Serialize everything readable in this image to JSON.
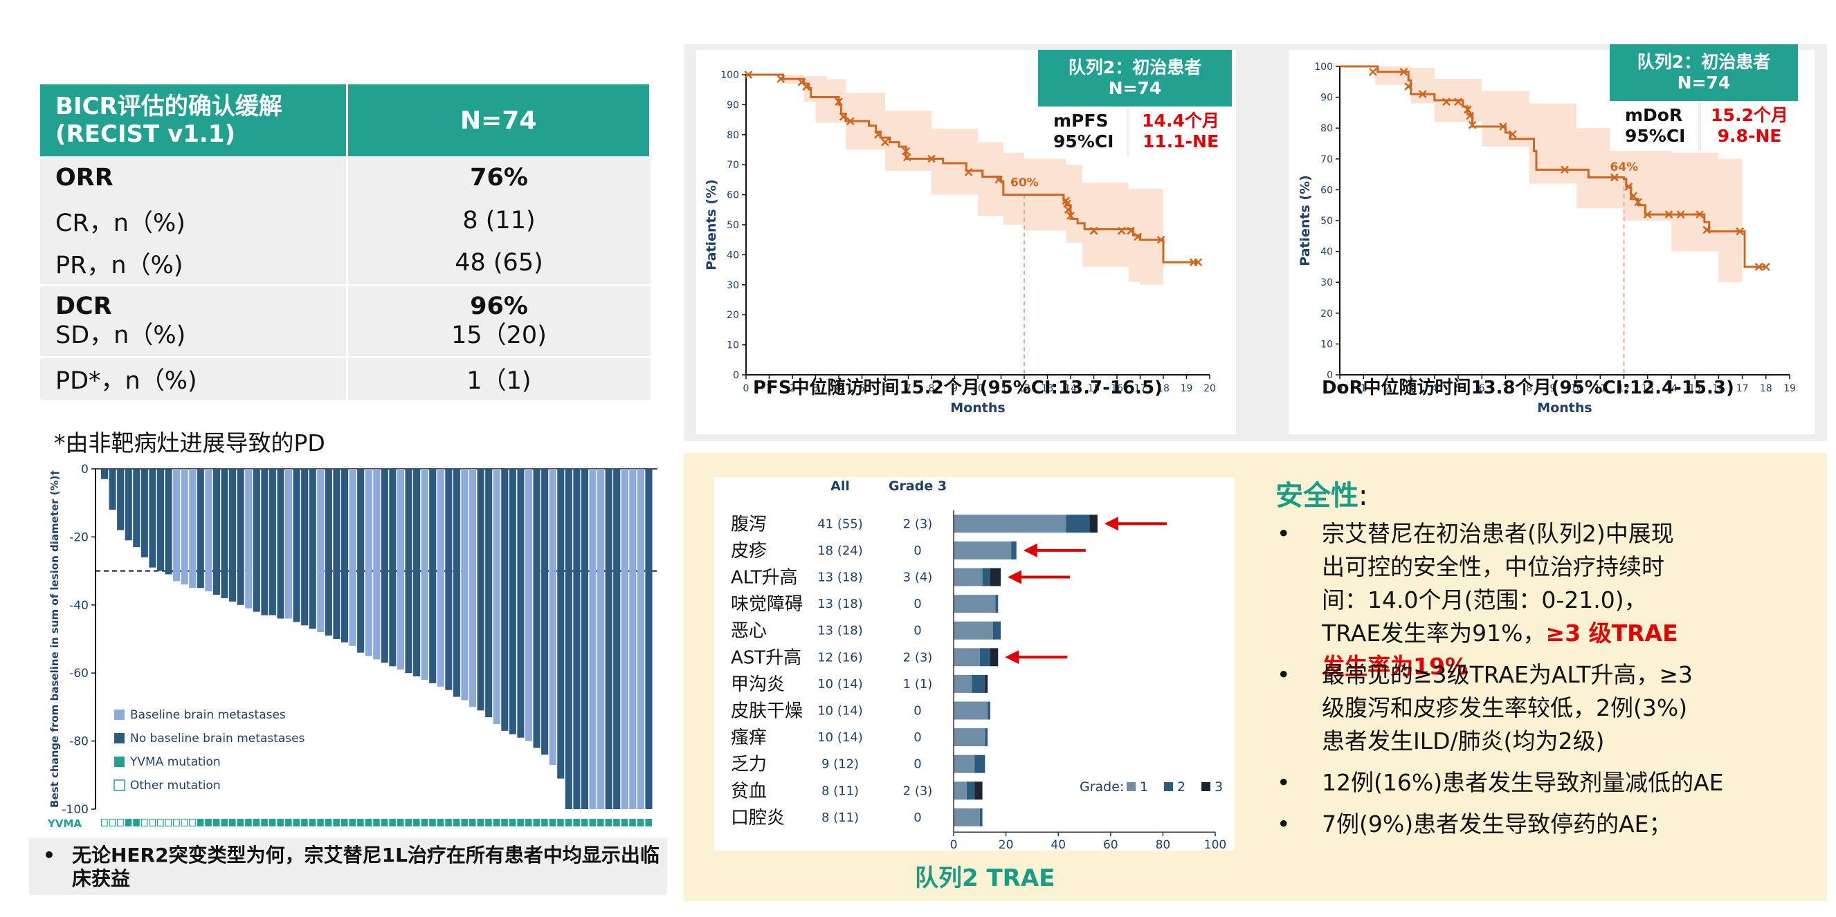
{
  "table": {
    "header_left_1": "BICR评估的确认缓解",
    "header_left_2": "(RECIST v1.1)",
    "header_right": "N=74",
    "rows": [
      {
        "label": "ORR",
        "value": "76%"
      },
      {
        "label": "CR，n（%)",
        "value": "8 (11)"
      },
      {
        "label": "PR，n（%)",
        "value": "48 (65)"
      },
      {
        "label": "DCR",
        "value": "96%"
      },
      {
        "label": "SD，n（%)",
        "value": "15（20)"
      },
      {
        "label": "PD*，n（%)",
        "value": "1（1)"
      }
    ],
    "footnote": "*由非靶病灶进展导致的PD"
  },
  "bottom_note": {
    "bullet": "•",
    "text": "无论HER2突变类型为何，宗艾替尼1L治疗在所有患者中均显示出临床获益"
  },
  "pfs_box": {
    "title_1": "队列2：初治患者",
    "title_2": "N=74",
    "key_1": "mPFS",
    "key_2": "95%CI",
    "val_1": "14.4个月",
    "val_2": "11.1-NE",
    "followup": "PFS中位随访时间15.2个月(95%CI:13.7-16.5)"
  },
  "dor_box": {
    "title_1": "队列2：初治患者",
    "title_2": "N=74",
    "key_1": "mDoR",
    "key_2": "95%CI",
    "val_1": "15.2个月",
    "val_2": "9.8-NE",
    "followup": "DoR中位随访时间13.8个月(95%CI:12.4-15.3)"
  },
  "safety": {
    "title": "安全性",
    "colon": ":",
    "bullet": "•",
    "b1_text": "宗艾替尼在初治患者(队列2)中展现出可控的安全性，中位治疗持续时间：14.0个月(范围：0-21.0)，TRAE发生率为91%，",
    "b1_red": "≥3 级TRAE发生率为19%",
    "b2": "最常见的≥3级TRAE为ALT升高，≥3级腹泻和皮疹发生率较低，2例(3%)患者发生ILD/肺炎(均为2级)",
    "b3": "12例(16%)患者发生导致剂量减低的AE",
    "b4": "7例(9%)患者发生导致停药的AE；"
  },
  "trae_title": "队列2  TRAE",
  "colors": {
    "teal": "#22a190",
    "orange": "#d0661e",
    "ci_fill": "#fbe2d2",
    "light_blue": "#8ea9dc",
    "dark_blue": "#2d5a82",
    "grade1": "#6f8ea6",
    "grade2": "#2e5b7d",
    "grade3": "#1c2531",
    "red": "#e00000"
  },
  "chart_data": [
    {
      "type": "line",
      "id": "pfs",
      "xlabel": "Months",
      "ylabel": "Patients (%)",
      "xlim": [
        0,
        20
      ],
      "ylim": [
        0,
        100
      ],
      "xticks": [
        0,
        1,
        2,
        3,
        4,
        5,
        6,
        7,
        8,
        9,
        10,
        11,
        12,
        13,
        14,
        15,
        16,
        17,
        18,
        19,
        20
      ],
      "yticks": [
        0,
        10,
        20,
        30,
        40,
        50,
        60,
        70,
        80,
        90,
        100
      ],
      "annotation": "60%",
      "annotation_x": 12,
      "step": [
        [
          0,
          100
        ],
        [
          1.5,
          100
        ],
        [
          1.6,
          98.6
        ],
        [
          2.4,
          98.6
        ],
        [
          2.5,
          97
        ],
        [
          2.7,
          95.5
        ],
        [
          2.8,
          92.5
        ],
        [
          4.0,
          90
        ],
        [
          4.1,
          87
        ],
        [
          4.3,
          84.5
        ],
        [
          5.3,
          83
        ],
        [
          5.6,
          81
        ],
        [
          5.8,
          79
        ],
        [
          6.2,
          77.5
        ],
        [
          6.6,
          76
        ],
        [
          6.9,
          72
        ],
        [
          8.5,
          70.5
        ],
        [
          9.5,
          68
        ],
        [
          10.2,
          66
        ],
        [
          11.0,
          64.5
        ],
        [
          11.1,
          60
        ],
        [
          13.7,
          58
        ],
        [
          13.8,
          56.5
        ],
        [
          14.0,
          52
        ],
        [
          14.3,
          50.5
        ],
        [
          14.6,
          48.5
        ],
        [
          16.7,
          46.5
        ],
        [
          17.0,
          45
        ],
        [
          17.9,
          45
        ],
        [
          18.0,
          37.5
        ],
        [
          19.5,
          37.5
        ]
      ],
      "censor": [
        [
          0.1,
          100
        ],
        [
          1.5,
          98.6
        ],
        [
          2.4,
          97.5
        ],
        [
          2.6,
          96
        ],
        [
          4.0,
          91
        ],
        [
          4.2,
          86
        ],
        [
          4.5,
          84.5
        ],
        [
          5.7,
          80
        ],
        [
          6.0,
          77.5
        ],
        [
          6.9,
          74.5
        ],
        [
          6.95,
          72.5
        ],
        [
          8.0,
          72
        ],
        [
          9.6,
          67.5
        ],
        [
          10.9,
          65
        ],
        [
          13.8,
          58
        ],
        [
          13.85,
          57
        ],
        [
          13.9,
          55
        ],
        [
          14.0,
          53
        ],
        [
          15.0,
          48
        ],
        [
          16.2,
          48
        ],
        [
          16.6,
          48
        ],
        [
          16.9,
          46
        ],
        [
          17.9,
          45
        ],
        [
          19.3,
          37.5
        ],
        [
          19.5,
          37.5
        ]
      ],
      "ci_upper": [
        [
          0,
          100
        ],
        [
          1.5,
          100
        ],
        [
          2.5,
          99.5
        ],
        [
          3.5,
          98.5
        ],
        [
          4.3,
          94
        ],
        [
          6,
          88
        ],
        [
          8,
          82
        ],
        [
          10,
          77.5
        ],
        [
          11.1,
          74
        ],
        [
          12,
          72
        ],
        [
          13.8,
          70
        ],
        [
          14.5,
          64
        ],
        [
          16.5,
          62
        ],
        [
          17,
          62
        ],
        [
          18,
          62
        ]
      ],
      "ci_lower": [
        [
          0,
          100
        ],
        [
          1.5,
          97
        ],
        [
          2.5,
          91
        ],
        [
          3,
          84
        ],
        [
          4.3,
          75
        ],
        [
          6,
          68
        ],
        [
          8,
          60
        ],
        [
          10,
          53
        ],
        [
          11.1,
          50
        ],
        [
          12,
          48
        ],
        [
          13.8,
          44
        ],
        [
          14.5,
          36
        ],
        [
          16.5,
          31
        ],
        [
          17,
          30
        ],
        [
          18,
          30
        ]
      ]
    },
    {
      "type": "line",
      "id": "dor",
      "xlabel": "Months",
      "ylabel": "Patients (%)",
      "xlim": [
        0,
        19
      ],
      "ylim": [
        0,
        100
      ],
      "xticks": [
        0,
        1,
        2,
        3,
        4,
        5,
        6,
        7,
        8,
        9,
        10,
        11,
        12,
        13,
        14,
        15,
        16,
        17,
        18,
        19
      ],
      "yticks": [
        0,
        10,
        20,
        30,
        40,
        50,
        60,
        70,
        80,
        90,
        100
      ],
      "annotation": "64%",
      "annotation_x": 12,
      "step": [
        [
          0,
          100
        ],
        [
          1.5,
          100
        ],
        [
          1.6,
          98.2
        ],
        [
          2.8,
          98.2
        ],
        [
          2.9,
          95.5
        ],
        [
          3.0,
          91
        ],
        [
          4.0,
          89
        ],
        [
          5.2,
          87
        ],
        [
          5.4,
          84.5
        ],
        [
          5.6,
          80.5
        ],
        [
          7.0,
          78.5
        ],
        [
          7.2,
          76.5
        ],
        [
          8.2,
          72.5
        ],
        [
          8.3,
          66.5
        ],
        [
          10.5,
          64
        ],
        [
          12.0,
          63.5
        ],
        [
          12.1,
          61
        ],
        [
          12.3,
          57
        ],
        [
          12.6,
          55
        ],
        [
          12.9,
          52
        ],
        [
          15.4,
          49.5
        ],
        [
          15.6,
          46.5
        ],
        [
          16.5,
          46.5
        ],
        [
          17.0,
          46.5
        ],
        [
          17.1,
          35
        ],
        [
          18.0,
          35
        ]
      ],
      "censor": [
        [
          1.4,
          98.2
        ],
        [
          2.7,
          98.2
        ],
        [
          2.9,
          93.5
        ],
        [
          3.5,
          91
        ],
        [
          4.5,
          88.5
        ],
        [
          5.0,
          88.5
        ],
        [
          5.4,
          86
        ],
        [
          5.5,
          84
        ],
        [
          5.6,
          81
        ],
        [
          6.9,
          80.5
        ],
        [
          7.3,
          78
        ],
        [
          9.5,
          66.5
        ],
        [
          11.6,
          64
        ],
        [
          12.2,
          61
        ],
        [
          12.4,
          58
        ],
        [
          12.6,
          56
        ],
        [
          13.0,
          52
        ],
        [
          13.9,
          52
        ],
        [
          14.4,
          52
        ],
        [
          15.2,
          52
        ],
        [
          15.5,
          47
        ],
        [
          16.9,
          46.5
        ],
        [
          17.7,
          35
        ],
        [
          18.0,
          35
        ]
      ],
      "ci_upper": [
        [
          0,
          100
        ],
        [
          1.5,
          100
        ],
        [
          3,
          99.5
        ],
        [
          4,
          96
        ],
        [
          6,
          92
        ],
        [
          8,
          88
        ],
        [
          10,
          80
        ],
        [
          12,
          78
        ],
        [
          14,
          72
        ],
        [
          16,
          70
        ],
        [
          17,
          70
        ]
      ],
      "ci_lower": [
        [
          0,
          100
        ],
        [
          1.5,
          94
        ],
        [
          3,
          88
        ],
        [
          4,
          82
        ],
        [
          6,
          74
        ],
        [
          8,
          62
        ],
        [
          10,
          54
        ],
        [
          12,
          50
        ],
        [
          14,
          40
        ],
        [
          16,
          30
        ],
        [
          17,
          30
        ]
      ]
    },
    {
      "type": "bar",
      "id": "waterfall",
      "ylabel": "Best change from baseline in sum of lesion diameter (%)†",
      "ylim": [
        -100,
        0
      ],
      "yticks": [
        0,
        -20,
        -40,
        -60,
        -80,
        -100
      ],
      "threshold": -30,
      "row_label": "YVMA",
      "legend": [
        "Baseline brain metastases",
        "No baseline brain metastases",
        "YVMA mutation",
        "Other mutation"
      ],
      "values": [
        -3,
        -12,
        -18,
        -21,
        -23,
        -26,
        -29,
        -30,
        -31,
        -33,
        -34,
        -35,
        -35,
        -36,
        -37,
        -38,
        -39,
        -40,
        -41,
        -42,
        -43,
        -43,
        -44,
        -44,
        -45,
        -46,
        -47,
        -48,
        -49,
        -50,
        -51,
        -52,
        -54,
        -55,
        -56,
        -57,
        -58,
        -59,
        -60,
        -61,
        -62,
        -63,
        -64,
        -65,
        -67,
        -68,
        -70,
        -71,
        -73,
        -75,
        -77,
        -78,
        -79,
        -80,
        -82,
        -84,
        -87,
        -91,
        -100,
        -100,
        -100,
        -100,
        -100,
        -100,
        -100,
        -100,
        -100,
        -100,
        -100
      ],
      "brain": [
        0,
        0,
        0,
        0,
        0,
        0,
        0,
        0,
        0,
        1,
        1,
        1,
        0,
        1,
        0,
        0,
        0,
        0,
        1,
        0,
        0,
        0,
        0,
        1,
        0,
        0,
        0,
        1,
        0,
        0,
        0,
        1,
        0,
        1,
        1,
        0,
        0,
        1,
        0,
        0,
        1,
        0,
        1,
        0,
        0,
        1,
        1,
        0,
        0,
        1,
        0,
        0,
        0,
        1,
        0,
        0,
        1,
        0,
        0,
        0,
        0,
        1,
        1,
        0,
        0,
        1,
        1,
        1,
        0
      ],
      "yvma": [
        0,
        0,
        0,
        1,
        1,
        0,
        0,
        0,
        0,
        0,
        0,
        0,
        1,
        1,
        1,
        1,
        1,
        1,
        1,
        1,
        1,
        1,
        1,
        1,
        1,
        1,
        1,
        1,
        1,
        1,
        1,
        1,
        1,
        1,
        1,
        1,
        1,
        1,
        1,
        1,
        1,
        1,
        1,
        1,
        1,
        1,
        1,
        1,
        1,
        1,
        1,
        1,
        1,
        1,
        1,
        1,
        1,
        1,
        1,
        1,
        1,
        1,
        1,
        1,
        1,
        1,
        1,
        1,
        1
      ]
    },
    {
      "type": "bar",
      "id": "trae",
      "xlabel": "Patients (%)",
      "xlim": [
        0,
        100
      ],
      "xticks": [
        0,
        20,
        40,
        60,
        80,
        100
      ],
      "col_all": "All",
      "col_g3": "Grade 3",
      "legend_title": "Grade:",
      "legend": [
        "1",
        "2",
        "3"
      ],
      "categories": [
        "腹泻",
        "皮疹",
        "ALT升高",
        "味觉障碍",
        "恶心",
        "AST升高",
        "甲沟炎",
        "皮肤干燥",
        "瘙痒",
        "乏力",
        "贫血",
        "口腔炎"
      ],
      "all": [
        "41 (55)",
        "18 (24)",
        "13 (18)",
        "13 (18)",
        "13 (18)",
        "12 (16)",
        "10 (14)",
        "10 (14)",
        "10 (14)",
        "9 (12)",
        "8 (11)",
        "8 (11)"
      ],
      "grade3": [
        "2 (3)",
        "0",
        "3 (4)",
        "0",
        "0",
        "2 (3)",
        "1 (1)",
        "0",
        "0",
        "0",
        "2 (3)",
        "0"
      ],
      "series": [
        {
          "name": "1",
          "values": [
            43,
            22,
            11,
            16,
            15,
            10,
            7,
            13,
            12,
            8,
            5,
            10
          ]
        },
        {
          "name": "2",
          "values": [
            9,
            2,
            3,
            1,
            3,
            4,
            5,
            1,
            1,
            4,
            3,
            1
          ]
        },
        {
          "name": "3",
          "values": [
            3,
            0,
            4,
            0,
            0,
            3,
            1,
            0,
            0,
            0,
            3,
            0
          ]
        }
      ],
      "arrows": [
        0,
        1,
        2,
        5
      ]
    }
  ]
}
